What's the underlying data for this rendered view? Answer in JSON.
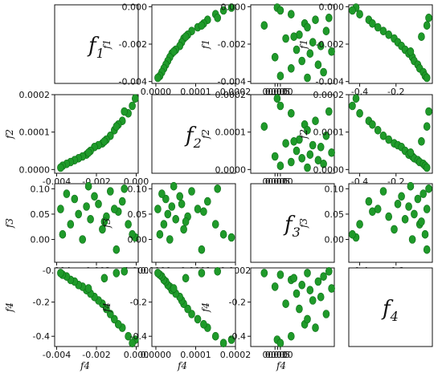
{
  "chart_data": {
    "type": "scatter",
    "layout": "pair-grid",
    "variables": [
      "f1",
      "f2",
      "f3",
      "f4"
    ],
    "diagonal_labels": [
      {
        "base": "f",
        "sub": "1"
      },
      {
        "base": "f",
        "sub": "2"
      },
      {
        "base": "f",
        "sub": "3"
      },
      {
        "base": "f",
        "sub": "4"
      }
    ],
    "ranges": {
      "f1": [
        -0.0041,
        0.0001
      ],
      "f2": [
        -1e-05,
        0.0002
      ],
      "f3": [
        -0.045,
        0.11
      ],
      "f4": [
        -0.46,
        0.0
      ]
    },
    "ticks": {
      "f1": [
        {
          "v": -0.004,
          "t": "-0.004"
        },
        {
          "v": -0.002,
          "t": "-0.002"
        },
        {
          "v": 0.0,
          "t": "0.000"
        }
      ],
      "f2": [
        {
          "v": 0.0,
          "t": "0.0000"
        },
        {
          "v": 0.0001,
          "t": "0.0001"
        },
        {
          "v": 0.0002,
          "t": "0.0002"
        }
      ],
      "f3": [
        {
          "v": 0.0,
          "t": "0.000"
        },
        {
          "v": 0.005,
          "t": "0.005"
        },
        {
          "v": 0.01,
          "t": "0.010"
        }
      ],
      "f3_y": [
        {
          "v": 0.0,
          "t": "0.00"
        },
        {
          "v": 0.05,
          "t": "0.05"
        },
        {
          "v": 0.1,
          "t": "0.10"
        }
      ],
      "f4": [
        {
          "v": -0.4,
          "t": "-0.4"
        },
        {
          "v": -0.2,
          "t": "-0.2"
        }
      ]
    },
    "axis_labels": {
      "x": "f4",
      "y_row": [
        "f1",
        "f2",
        "f3",
        "f4"
      ]
    },
    "marker_color": "#1f9a2a",
    "marker_edge": "#0b6b15",
    "grid": false,
    "points": [
      {
        "f1": -5e-05,
        "f2": 0.00019,
        "f3": 0.004,
        "f4": -0.42
      },
      {
        "f1": -0.0002,
        "f2": 0.00017,
        "f3": 0.01,
        "f4": -0.44
      },
      {
        "f1": -0.0004,
        "f2": 0.00015,
        "f3": 0.03,
        "f4": -0.4
      },
      {
        "f1": -0.0007,
        "f2": 0.00013,
        "f3": 0.075,
        "f4": -0.35
      },
      {
        "f1": -0.0009,
        "f2": 0.00012,
        "f3": 0.055,
        "f4": -0.33
      },
      {
        "f1": -0.0011,
        "f2": 0.000105,
        "f3": 0.06,
        "f4": -0.3
      },
      {
        "f1": -0.0013,
        "f2": 9e-05,
        "f3": 0.095,
        "f4": -0.27
      },
      {
        "f1": -0.0015,
        "f2": 8e-05,
        "f3": 0.045,
        "f4": -0.24
      },
      {
        "f1": -0.0017,
        "f2": 7e-05,
        "f3": 0.02,
        "f4": -0.21
      },
      {
        "f1": -0.0019,
        "f2": 6.5e-05,
        "f3": 0.07,
        "f4": -0.19
      },
      {
        "f1": -0.0021,
        "f2": 6e-05,
        "f3": 0.085,
        "f4": -0.17
      },
      {
        "f1": -0.0023,
        "f2": 5e-05,
        "f3": 0.04,
        "f4": -0.15
      },
      {
        "f1": -0.0025,
        "f2": 4e-05,
        "f3": 0.065,
        "f4": -0.13
      },
      {
        "f1": -0.0027,
        "f2": 3.5e-05,
        "f3": 0.0,
        "f4": -0.11
      },
      {
        "f1": -0.0029,
        "f2": 3e-05,
        "f3": 0.05,
        "f4": -0.1
      },
      {
        "f1": -0.0031,
        "f2": 2.5e-05,
        "f3": 0.08,
        "f4": -0.08
      },
      {
        "f1": -0.0033,
        "f2": 2e-05,
        "f3": 0.03,
        "f4": -0.07
      },
      {
        "f1": -0.0035,
        "f2": 1.5e-05,
        "f3": 0.09,
        "f4": -0.05
      },
      {
        "f1": -0.0037,
        "f2": 1e-05,
        "f3": 0.01,
        "f4": -0.04
      },
      {
        "f1": -0.0038,
        "f2": 5e-06,
        "f3": 0.06,
        "f4": -0.03
      },
      {
        "f1": -0.0006,
        "f2": 0.000155,
        "f3": 0.1,
        "f4": -0.02
      },
      {
        "f1": -0.001,
        "f2": 0.000115,
        "f3": -0.02,
        "f4": -0.03
      },
      {
        "f1": -0.0016,
        "f2": 7.5e-05,
        "f3": 0.035,
        "f4": -0.06
      },
      {
        "f1": -0.0024,
        "f2": 4.5e-05,
        "f3": 0.105,
        "f4": -0.12
      }
    ]
  }
}
